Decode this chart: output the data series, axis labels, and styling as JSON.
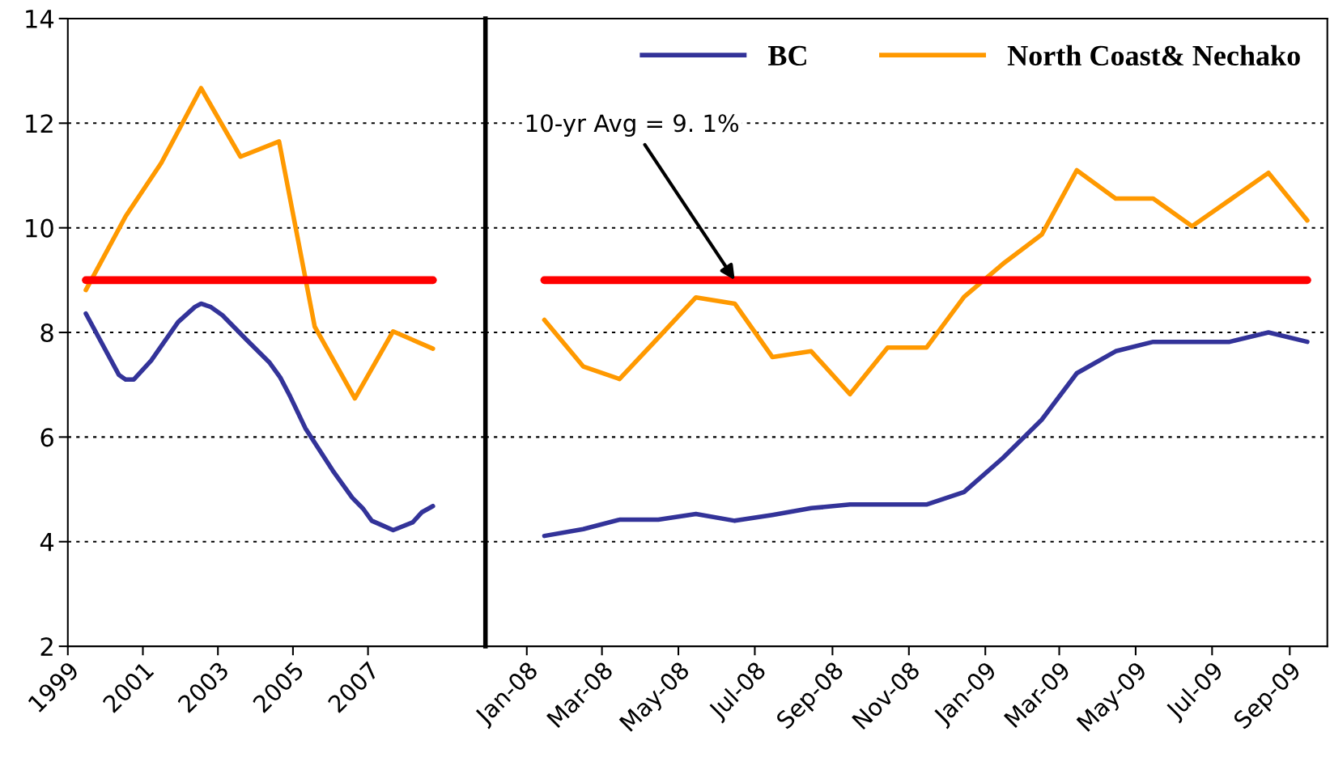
{
  "chart_data": [
    {
      "type": "line",
      "xlim": [
        1999,
        2010.13
      ],
      "xticks": [
        1999,
        2001,
        2003,
        2005,
        2007
      ],
      "ylim": [
        2,
        14
      ],
      "yticks": [
        2,
        4,
        6,
        8,
        10,
        12,
        14
      ],
      "grid": "y",
      "series": [
        {
          "color": "#333399",
          "x": [
            1999.48,
            2000.36,
            2000.54,
            2000.76,
            2001.22,
            2001.94,
            2002.39,
            2002.55,
            2002.8,
            2003.12,
            2003.75,
            2004.38,
            2004.66,
            2004.93,
            2005.33,
            2006.06,
            2006.58,
            2006.87,
            2007.1,
            2007.42,
            2007.67,
            2008.19,
            2008.43,
            2008.73
          ],
          "values": [
            8.36,
            7.19,
            7.1,
            7.1,
            7.46,
            8.2,
            8.49,
            8.55,
            8.49,
            8.33,
            7.87,
            7.42,
            7.14,
            6.77,
            6.17,
            5.36,
            4.84,
            4.63,
            4.4,
            4.3,
            4.22,
            4.37,
            4.56,
            4.68
          ]
        },
        {
          "color": "#ff9900",
          "x": [
            1999.48,
            2000.54,
            2001.49,
            2002.55,
            2003.6,
            2004.63,
            2005.58,
            2006.65,
            2007.67,
            2008.73
          ],
          "values": [
            8.81,
            10.22,
            11.24,
            12.67,
            11.36,
            11.65,
            8.11,
            6.74,
            8.02,
            7.69
          ]
        },
        {
          "color": "#ff0000",
          "x": [
            1999.48,
            2008.73
          ],
          "values": [
            9,
            9
          ]
        }
      ]
    },
    {
      "type": "line",
      "xlim": [
        "2007-11-29",
        "2009-10-01"
      ],
      "xticks": [
        {
          "value": "2008-01-01",
          "label": "Jan-08"
        },
        {
          "value": "2008-03-01",
          "label": "Mar-08"
        },
        {
          "value": "2008-05-01",
          "label": "May-08"
        },
        {
          "value": "2008-07-01",
          "label": "Jul-08"
        },
        {
          "value": "2008-09-01",
          "label": "Sep-08"
        },
        {
          "value": "2008-11-01",
          "label": "Nov-08"
        },
        {
          "value": "2009-01-01",
          "label": "Jan-09"
        },
        {
          "value": "2009-03-01",
          "label": "Mar-09"
        },
        {
          "value": "2009-05-01",
          "label": "May-09"
        },
        {
          "value": "2009-07-01",
          "label": "Jul-09"
        },
        {
          "value": "2009-09-01",
          "label": "Sep-09"
        }
      ],
      "ylim": [
        2,
        14
      ],
      "yticks": [
        2,
        4,
        6,
        8,
        10,
        12,
        14
      ],
      "grid": "y",
      "tick_labels": "x",
      "legend": "top right",
      "x": [
        "2008-01-15",
        "2008-02-15",
        "2008-03-15",
        "2008-04-15",
        "2008-05-15",
        "2008-06-15",
        "2008-07-15",
        "2008-08-15",
        "2008-09-15",
        "2008-10-15",
        "2008-11-15",
        "2008-12-15",
        "2009-01-15",
        "2009-02-15",
        "2009-03-15",
        "2009-04-15",
        "2009-05-15",
        "2009-06-15",
        "2009-07-15",
        "2009-08-15",
        "2009-09-15"
      ],
      "series": [
        {
          "name": "BC",
          "color": "#333399",
          "values": [
            4.11,
            4.24,
            4.42,
            4.42,
            4.53,
            4.4,
            4.51,
            4.64,
            4.71,
            4.71,
            4.71,
            4.95,
            5.6,
            6.33,
            7.22,
            7.64,
            7.82,
            7.82,
            7.82,
            8.0,
            7.82
          ]
        },
        {
          "name": "North Coast& Nechako",
          "color": "#ff9900",
          "values": [
            8.24,
            7.35,
            7.11,
            7.9,
            8.67,
            8.55,
            7.53,
            7.64,
            6.82,
            7.71,
            7.71,
            8.68,
            9.31,
            9.87,
            11.1,
            10.56,
            10.56,
            10.03,
            10.53,
            11.05,
            10.14
          ]
        },
        {
          "color": "#ff0000",
          "x": [
            "2008-01-15",
            "2009-09-15"
          ],
          "values": [
            9,
            9
          ]
        }
      ],
      "annotations": [
        {
          "text": "10-yr Avg = 9. 1%",
          "x": "2008-06-15",
          "y": 9
        }
      ]
    }
  ]
}
